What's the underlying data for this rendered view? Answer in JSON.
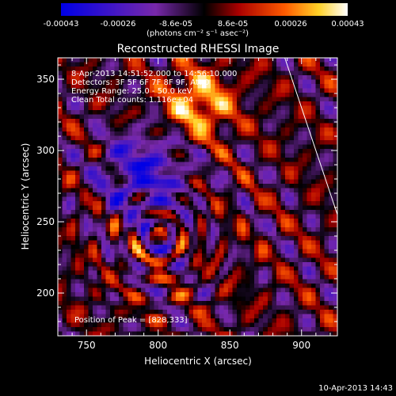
{
  "colorbar": {
    "tick_labels": [
      "-0.00043",
      "-0.00026",
      "-8.6e-05",
      "8.6e-05",
      "0.00026",
      "0.00043"
    ],
    "units": "(photons cm⁻² s⁻¹ asec⁻²)",
    "range": [
      -0.00043,
      0.00043
    ]
  },
  "chart_data": {
    "type": "heatmap",
    "title": "Reconstructed RHESSI Image",
    "xlabel": "Heliocentric X (arcsec)",
    "ylabel": "Heliocentric Y (arcsec)",
    "xlim": [
      730,
      925
    ],
    "ylim": [
      170,
      365
    ],
    "xticks": [
      750,
      800,
      850,
      900
    ],
    "yticks": [
      200,
      250,
      300,
      350
    ],
    "annotations": [
      "8-Apr-2013 14:51:52.000 to 14:56:10.000",
      "Detectors: 3F 5F 6F 7F 8F 9F, Att 0",
      "Energy Range: 25.0 - 50.0 keV",
      "Clean    Total counts: 1.116e+04",
      "Position of Peak = [828,333]"
    ],
    "limb_line": [
      [
        888,
        366
      ],
      [
        926,
        252
      ]
    ],
    "peak": [
      828,
      333
    ]
  },
  "footer": {
    "timestamp": "10-Apr-2013 14:43"
  },
  "colors": {
    "background": "#000000",
    "axes": "#ffffff"
  }
}
